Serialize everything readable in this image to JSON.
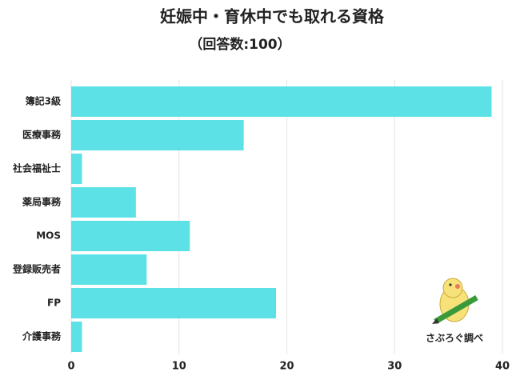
{
  "chart_data": {
    "type": "bar",
    "orientation": "horizontal",
    "title": "妊娠中・育休中でも取れる資格",
    "subtitle": "（回答数:100）",
    "categories": [
      "簿記3級",
      "医療事務",
      "社会福祉士",
      "薬局事務",
      "MOS",
      "登録販売者",
      "FP",
      "介護事務"
    ],
    "values": [
      39,
      16,
      1,
      6,
      11,
      7,
      19,
      1
    ],
    "color": "#5ce1e6",
    "xlim": [
      0,
      40
    ],
    "xticks": [
      0,
      10,
      20,
      30,
      40
    ],
    "grid": true,
    "watermark": "さぶろぐ調べ"
  }
}
